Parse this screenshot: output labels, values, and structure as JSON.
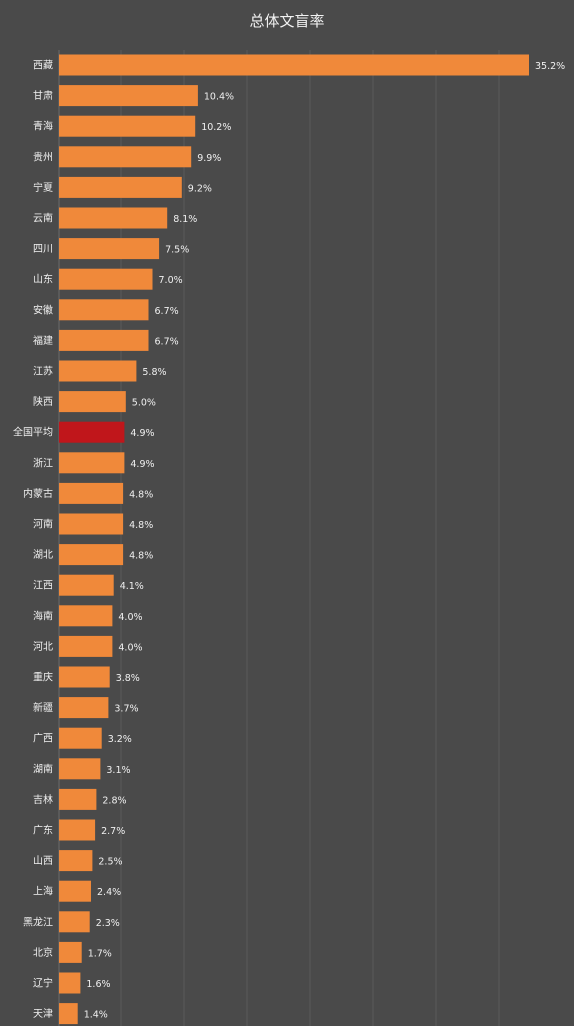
{
  "chart_data": {
    "type": "bar",
    "orientation": "horizontal",
    "title": "总体文盲率",
    "categories": [
      "西藏",
      "甘肃",
      "青海",
      "贵州",
      "宁夏",
      "云南",
      "四川",
      "山东",
      "安徽",
      "福建",
      "江苏",
      "陕西",
      "全国平均",
      "浙江",
      "内蒙古",
      "河南",
      "湖北",
      "江西",
      "海南",
      "河北",
      "重庆",
      "新疆",
      "广西",
      "湖南",
      "吉林",
      "广东",
      "山西",
      "上海",
      "黑龙江",
      "北京",
      "辽宁",
      "天津"
    ],
    "values": [
      35.2,
      10.4,
      10.2,
      9.9,
      9.2,
      8.1,
      7.5,
      7.0,
      6.7,
      6.7,
      5.8,
      5.0,
      4.9,
      4.9,
      4.8,
      4.8,
      4.8,
      4.1,
      4.0,
      4.0,
      3.8,
      3.7,
      3.2,
      3.1,
      2.8,
      2.7,
      2.5,
      2.4,
      2.3,
      1.7,
      1.6,
      1.4
    ],
    "value_labels": [
      "35.2%",
      "10.4%",
      "10.2%",
      "9.9%",
      "9.2%",
      "8.1%",
      "7.5%",
      "7.0%",
      "6.7%",
      "6.7%",
      "5.8%",
      "5.0%",
      "4.9%",
      "4.9%",
      "4.8%",
      "4.8%",
      "4.8%",
      "4.1%",
      "4.0%",
      "4.0%",
      "3.8%",
      "3.7%",
      "3.2%",
      "3.1%",
      "2.8%",
      "2.7%",
      "2.5%",
      "2.4%",
      "2.3%",
      "1.7%",
      "1.6%",
      "1.4%"
    ],
    "highlight_category": "全国平均",
    "xlim": [
      0,
      35.2
    ],
    "grid": true,
    "colors": {
      "bar": "#f0893a",
      "highlight": "#c0161b",
      "background": "#4a4a4a",
      "grid": "#5a5a5a",
      "text": "#f0f0f0"
    }
  }
}
